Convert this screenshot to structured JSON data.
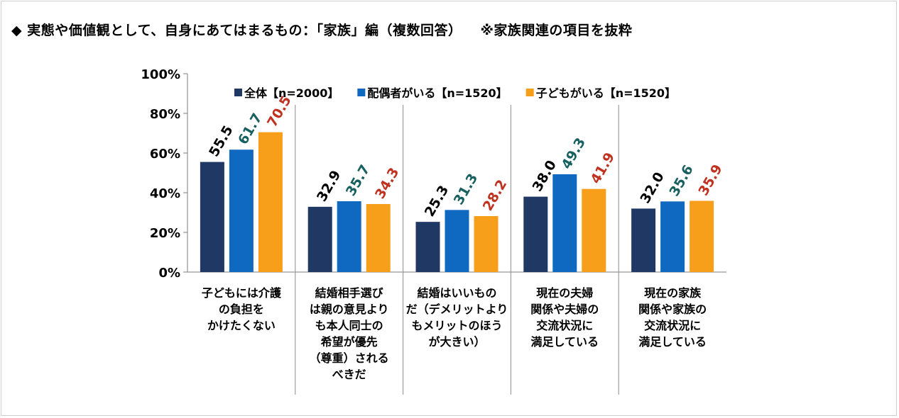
{
  "title": "◆ 実態や価値観として、自身にあてはまるもの：「家族」編（複数回答）",
  "note": "※家族関連の項目を抜粋",
  "chart_data": {
    "type": "bar",
    "ylim": [
      0,
      100
    ],
    "yticks": [
      0,
      20,
      40,
      60,
      80,
      100
    ],
    "ytick_labels": [
      "0%",
      "20%",
      "40%",
      "60%",
      "80%",
      "100%"
    ],
    "legend_position": "top",
    "categories": [
      "子どもには介護\nの負担を\nかけたくない",
      "結婚相手選び\nは親の意見より\nも本人同士の\n希望が優先\n（尊重）される\nべきだ",
      "結婚はいいもの\nだ（デメリットより\nもメリットのほう\nが大きい）",
      "現在の夫婦\n関係や夫婦の\n交流状況に\n満足している",
      "現在の家族\n関係や家族の\n交流状況に\n満足している"
    ],
    "series": [
      {
        "name": "全体【n=2000】",
        "color": "#203864",
        "label_color": "#000000",
        "values": [
          55.5,
          32.9,
          25.3,
          38.0,
          32.0
        ],
        "labels": [
          "55.5",
          "32.9",
          "25.3",
          "38.0",
          "32.0"
        ]
      },
      {
        "name": "配偶者がいる【n=1520】",
        "color": "#0f69c1",
        "label_color": "#17605f",
        "values": [
          61.7,
          35.7,
          31.3,
          49.3,
          35.6
        ],
        "labels": [
          "61.7",
          "35.7",
          "31.3",
          "49.3",
          "35.6"
        ]
      },
      {
        "name": "子どもがいる【n=1520】",
        "color": "#f79e1b",
        "label_color": "#c0311f",
        "values": [
          70.5,
          34.3,
          28.2,
          41.9,
          35.9
        ],
        "labels": [
          "70.5",
          "34.3",
          "28.2",
          "41.9",
          "35.9"
        ]
      }
    ]
  }
}
